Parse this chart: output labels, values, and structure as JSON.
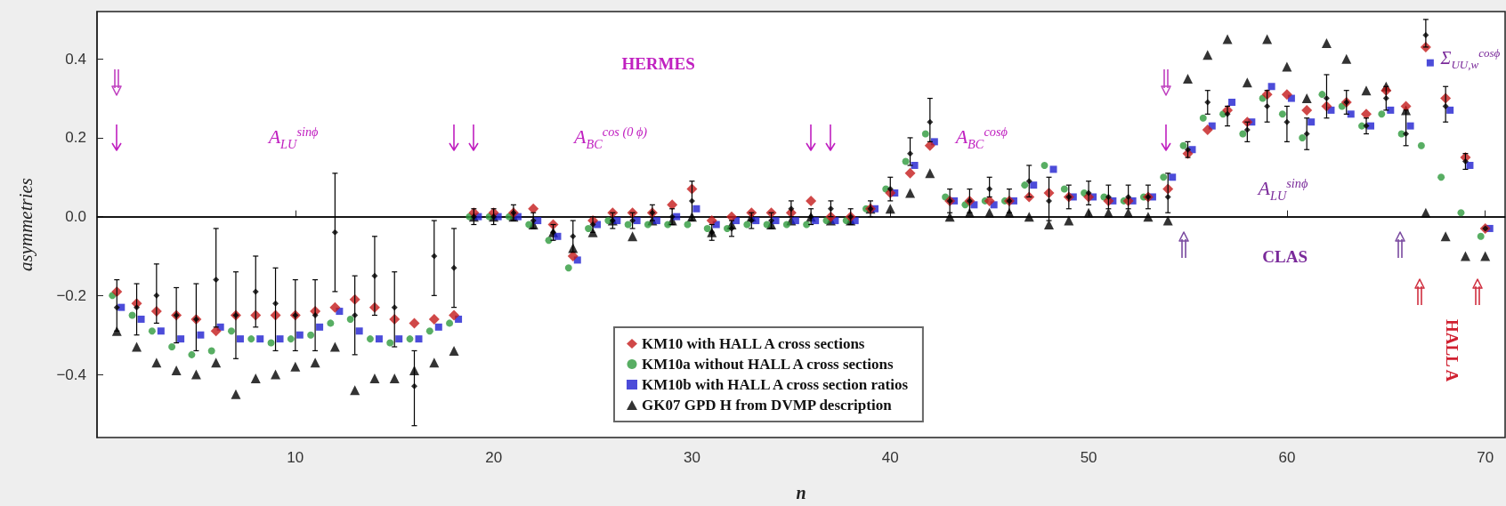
{
  "chart_data": {
    "type": "scatter",
    "xlabel": "n",
    "ylabel": "asymmetries",
    "x": [
      1,
      2,
      3,
      4,
      5,
      6,
      7,
      8,
      9,
      10,
      11,
      12,
      13,
      14,
      15,
      16,
      17,
      18,
      19,
      20,
      21,
      22,
      23,
      24,
      25,
      26,
      27,
      28,
      29,
      30,
      31,
      32,
      33,
      34,
      35,
      36,
      37,
      38,
      39,
      40,
      41,
      42,
      43,
      44,
      45,
      46,
      47,
      48,
      49,
      50,
      51,
      52,
      53,
      54,
      55,
      56,
      57,
      58,
      59,
      60,
      61,
      62,
      63,
      64,
      65,
      66,
      67,
      68,
      69,
      70
    ],
    "xlim": [
      0,
      71
    ],
    "xticks": [
      10,
      20,
      30,
      40,
      50,
      60,
      70
    ],
    "ylim": [
      -0.56,
      0.52
    ],
    "yticks": [
      {
        "value": -0.4,
        "label": "−0.4"
      },
      {
        "value": -0.2,
        "label": "−0.2"
      },
      {
        "value": 0,
        "label": "0.0"
      },
      0.2,
      0.4
    ],
    "legend": "bottom",
    "ref_lines": [
      {
        "axis": "y",
        "value": 0,
        "color": "#000000"
      }
    ],
    "series": [
      {
        "name": "KM10 with HALL A cross sections",
        "color": "#c41a1a",
        "marker": "diamond",
        "values": [
          -0.19,
          -0.22,
          -0.24,
          -0.25,
          -0.26,
          -0.29,
          -0.25,
          -0.25,
          -0.25,
          -0.25,
          -0.24,
          -0.23,
          -0.21,
          -0.23,
          -0.26,
          -0.27,
          -0.26,
          -0.25,
          0.01,
          0.01,
          0.01,
          0.02,
          -0.02,
          -0.1,
          -0.01,
          0.01,
          0.01,
          0.01,
          0.03,
          0.07,
          -0.01,
          0.0,
          0.01,
          0.01,
          0.01,
          0.04,
          0.0,
          0.0,
          0.02,
          0.06,
          0.11,
          0.18,
          0.04,
          0.04,
          0.04,
          0.04,
          0.05,
          0.06,
          0.05,
          0.05,
          0.04,
          0.04,
          0.05,
          0.07,
          0.16,
          0.22,
          0.27,
          0.24,
          0.31,
          0.31,
          0.27,
          0.28,
          0.29,
          0.26,
          0.32,
          0.28,
          0.43,
          0.3,
          0.15,
          -0.03
        ]
      },
      {
        "name": "KM10a without HALL A cross sections",
        "color": "#2e9a3c",
        "marker": "circle",
        "values": [
          -0.2,
          -0.25,
          -0.29,
          -0.33,
          -0.35,
          -0.34,
          -0.29,
          -0.31,
          -0.32,
          -0.31,
          -0.3,
          -0.27,
          -0.26,
          -0.31,
          -0.32,
          -0.31,
          -0.29,
          -0.27,
          0.0,
          0.0,
          0.0,
          -0.02,
          -0.06,
          -0.13,
          -0.03,
          -0.01,
          -0.02,
          -0.02,
          -0.02,
          -0.02,
          -0.03,
          -0.03,
          -0.02,
          -0.02,
          -0.02,
          -0.02,
          -0.01,
          -0.01,
          0.02,
          0.07,
          0.14,
          0.21,
          0.05,
          0.03,
          0.04,
          0.04,
          0.08,
          0.13,
          0.07,
          0.06,
          0.05,
          0.04,
          0.05,
          0.1,
          0.18,
          0.25,
          0.26,
          0.21,
          0.3,
          0.26,
          0.2,
          0.31,
          0.28,
          0.23,
          0.26,
          0.21,
          0.18,
          0.1,
          0.01,
          -0.05
        ]
      },
      {
        "name": "KM10b with HALL A cross section ratios",
        "color": "#1f1fd0",
        "marker": "square",
        "values": [
          -0.23,
          -0.26,
          -0.29,
          -0.31,
          -0.3,
          -0.28,
          -0.31,
          -0.31,
          -0.31,
          -0.3,
          -0.28,
          -0.24,
          -0.29,
          -0.31,
          -0.31,
          -0.31,
          -0.28,
          -0.26,
          0.0,
          0.0,
          0.0,
          -0.01,
          -0.05,
          -0.11,
          -0.02,
          -0.01,
          -0.01,
          -0.01,
          0.0,
          0.02,
          -0.02,
          -0.01,
          -0.01,
          -0.01,
          -0.01,
          -0.01,
          -0.01,
          -0.01,
          0.02,
          0.06,
          0.13,
          0.19,
          0.04,
          0.03,
          0.03,
          0.04,
          0.08,
          0.12,
          0.05,
          0.05,
          0.04,
          0.04,
          0.05,
          0.1,
          0.17,
          0.23,
          0.29,
          0.24,
          0.33,
          0.3,
          0.24,
          0.27,
          0.26,
          0.23,
          0.27,
          0.23,
          0.39,
          0.27,
          0.13,
          -0.03
        ]
      },
      {
        "name": "GK07 GPD H from DVMP description",
        "color": "#000000",
        "marker": "triangle",
        "values": [
          -0.29,
          -0.33,
          -0.37,
          -0.39,
          -0.4,
          -0.37,
          -0.45,
          -0.41,
          -0.4,
          -0.38,
          -0.37,
          -0.33,
          -0.44,
          -0.41,
          -0.41,
          -0.39,
          -0.37,
          -0.34,
          0.0,
          0.0,
          0.0,
          -0.02,
          -0.04,
          -0.08,
          -0.04,
          -0.01,
          -0.05,
          -0.01,
          -0.01,
          0.0,
          -0.04,
          -0.02,
          0.0,
          -0.02,
          -0.01,
          0.0,
          -0.01,
          -0.01,
          0.02,
          0.02,
          0.06,
          0.11,
          0.0,
          0.01,
          0.01,
          0.01,
          0.0,
          -0.02,
          -0.01,
          0.01,
          0.01,
          0.01,
          0.0,
          -0.01,
          0.35,
          0.41,
          0.45,
          0.34,
          0.45,
          0.38,
          0.3,
          0.44,
          0.4,
          0.32,
          0.33,
          0.27,
          0.01,
          -0.05,
          -0.1,
          -0.1
        ]
      },
      {
        "color": "#000000",
        "marker": "diamond",
        "values": [
          -0.23,
          -0.23,
          -0.2,
          -0.25,
          -0.26,
          -0.16,
          -0.25,
          -0.19,
          -0.22,
          -0.25,
          -0.25,
          -0.04,
          -0.25,
          -0.15,
          -0.23,
          -0.43,
          -0.1,
          -0.13,
          0.0,
          0.0,
          0.01,
          -0.01,
          -0.04,
          -0.05,
          -0.02,
          -0.01,
          -0.01,
          0.01,
          0.0,
          0.04,
          -0.04,
          -0.03,
          -0.01,
          -0.01,
          0.02,
          0.0,
          0.02,
          0.0,
          0.02,
          0.07,
          0.16,
          0.24,
          0.04,
          0.04,
          0.07,
          0.04,
          0.09,
          0.04,
          0.05,
          0.06,
          0.05,
          0.05,
          0.05,
          0.05,
          0.17,
          0.29,
          0.26,
          0.22,
          0.28,
          0.24,
          0.21,
          0.3,
          0.29,
          0.23,
          0.3,
          0.21,
          0.46,
          0.28,
          0.14,
          -0.03
        ],
        "errors": [
          [
            -0.29,
            -0.16
          ],
          [
            -0.3,
            -0.17
          ],
          [
            -0.27,
            -0.12
          ],
          [
            -0.32,
            -0.18
          ],
          [
            -0.34,
            -0.17
          ],
          [
            -0.28,
            -0.03
          ],
          [
            -0.36,
            -0.14
          ],
          [
            -0.28,
            -0.1
          ],
          [
            -0.34,
            -0.13
          ],
          [
            -0.34,
            -0.16
          ],
          [
            -0.34,
            -0.16
          ],
          [
            -0.19,
            0.11
          ],
          [
            -0.35,
            -0.15
          ],
          [
            -0.25,
            -0.05
          ],
          [
            -0.33,
            -0.14
          ],
          [
            -0.53,
            -0.34
          ],
          [
            -0.2,
            -0.01
          ],
          [
            -0.23,
            -0.03
          ],
          0.02,
          0.02,
          0.02,
          0.02,
          0.02,
          0.04,
          0.02,
          0.02,
          0.02,
          0.02,
          0.02,
          [
            -0.01,
            0.09
          ],
          0.02,
          0.02,
          0.02,
          0.02,
          0.02,
          0.02,
          0.02,
          0.02,
          0.02,
          0.03,
          [
            0.13,
            0.2
          ],
          [
            0.19,
            0.3
          ],
          0.03,
          0.03,
          [
            0.05,
            0.1
          ],
          0.03,
          [
            0.05,
            0.13
          ],
          [
            -0.01,
            0.1
          ],
          0.03,
          0.03,
          0.03,
          0.03,
          0.03,
          [
            0.01,
            0.11
          ],
          0.02,
          [
            0.26,
            0.32
          ],
          [
            0.23,
            0.28
          ],
          [
            0.19,
            0.24
          ],
          [
            0.24,
            0.32
          ],
          [
            0.19,
            0.28
          ],
          [
            0.17,
            0.25
          ],
          [
            0.25,
            0.36
          ],
          [
            0.26,
            0.32
          ],
          [
            0.21,
            0.25
          ],
          [
            0.27,
            0.33
          ],
          [
            0.18,
            0.27
          ],
          [
            0.43,
            0.5
          ],
          [
            0.24,
            0.33
          ],
          [
            0.12,
            0.16
          ],
          null
        ]
      }
    ],
    "annotations": [
      "HERMES",
      "A$_{LU}$$^{sinϕ}$",
      "A$_{BC}$$^{cos (0 ϕ)}$",
      "A$_{BC}$$^{cosϕ}$",
      "A$_{LU}$$^{sinϕ}$",
      "CLAS",
      "HALL A",
      "Σ$_{UU,w}$$^{cosϕ}$"
    ]
  }
}
